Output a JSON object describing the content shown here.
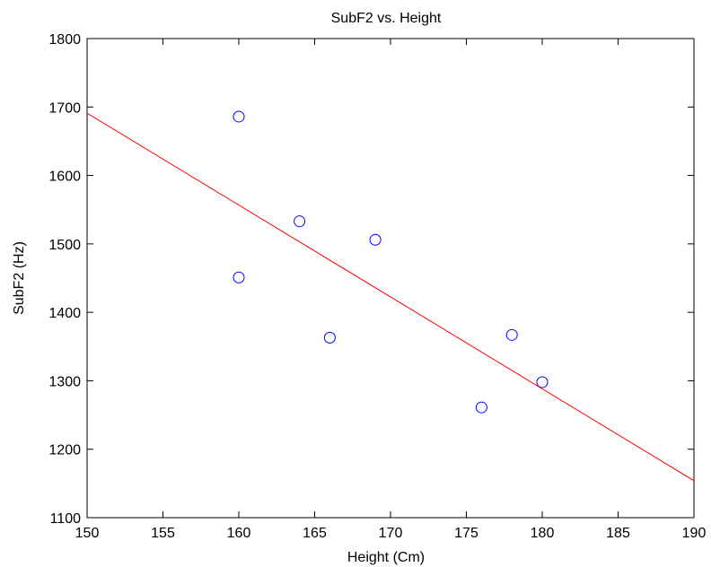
{
  "chart_data": {
    "type": "scatter",
    "title": "SubF2 vs. Height",
    "xlabel": "Height (Cm)",
    "ylabel": "SubF2 (Hz)",
    "xlim": [
      150,
      190
    ],
    "ylim": [
      1100,
      1800
    ],
    "xticks": [
      "150",
      "155",
      "160",
      "165",
      "170",
      "175",
      "180",
      "185",
      "190"
    ],
    "yticks": [
      "1100",
      "1200",
      "1300",
      "1400",
      "1500",
      "1600",
      "1700",
      "1800"
    ],
    "grid": false,
    "series": [
      {
        "type": "scatter",
        "marker": "circle",
        "color": "#0000ff",
        "x": [
          160,
          160,
          164,
          166,
          169,
          176,
          178,
          180
        ],
        "y": [
          1686,
          1451,
          1533,
          1363,
          1506,
          1261,
          1367,
          1298
        ]
      },
      {
        "type": "line",
        "color": "#ff0000",
        "x": [
          150,
          190
        ],
        "y": [
          1691,
          1154
        ]
      }
    ]
  }
}
